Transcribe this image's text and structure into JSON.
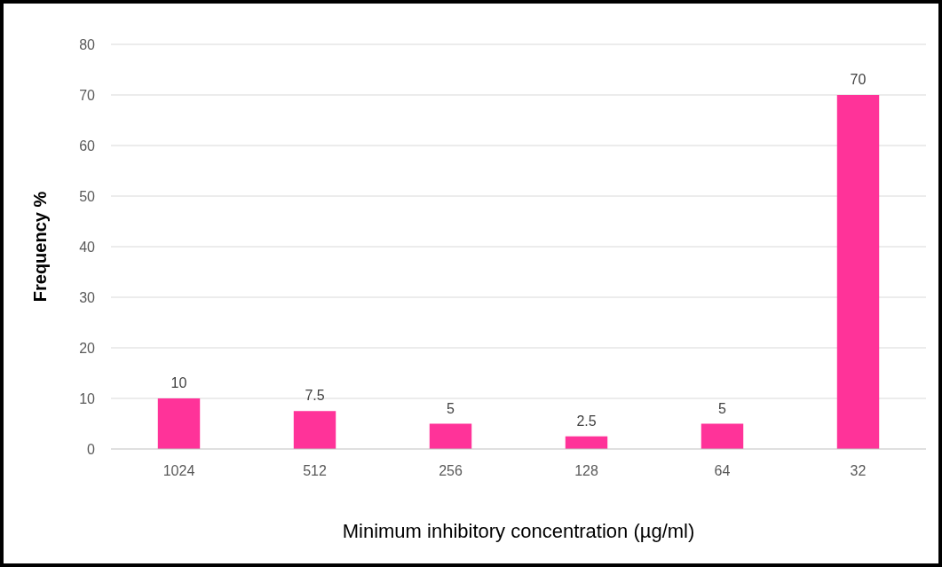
{
  "chart_data": {
    "type": "bar",
    "xlabel": "Minimum inhibitory concentration (µg/ml)",
    "ylabel": "Frequency %",
    "categories": [
      "1024",
      "512",
      "256",
      "128",
      "64",
      "32"
    ],
    "values": [
      10,
      7.5,
      5,
      2.5,
      5,
      70
    ],
    "color": "#ff3399",
    "ylim": [
      0,
      80
    ],
    "yticks": [
      0,
      10,
      20,
      30,
      40,
      50,
      60,
      70,
      80
    ],
    "grid": "y",
    "data_labels": true
  }
}
